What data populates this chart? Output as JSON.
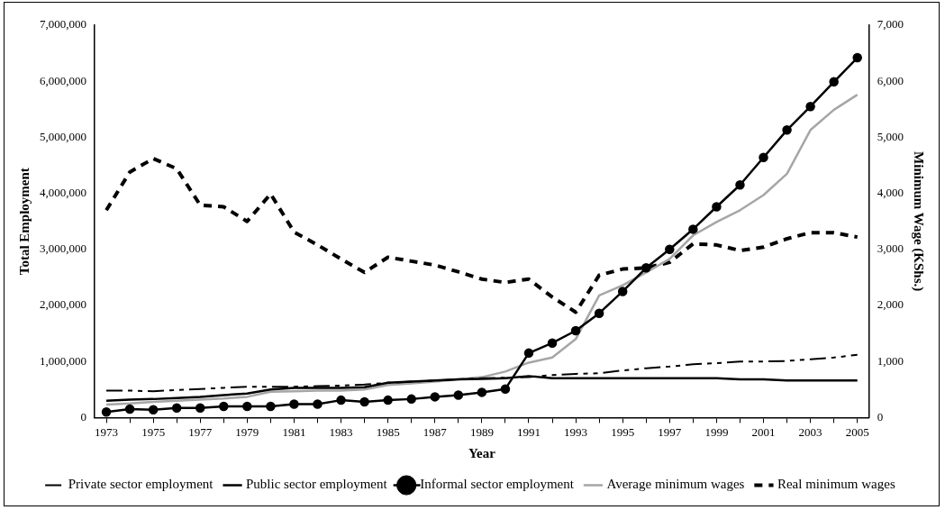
{
  "chart_data": {
    "type": "line",
    "xlabel": "Year",
    "ylabel": "Total Employment",
    "y2label": "Minimum Wage (KShs.)",
    "categories": [
      "1973",
      null,
      "1975",
      null,
      "1977",
      null,
      "1979",
      null,
      "1981",
      null,
      "1983",
      null,
      "1985",
      null,
      "1987",
      null,
      "1989",
      null,
      "1991",
      null,
      "1993",
      null,
      "1995",
      null,
      "1997",
      null,
      "1999",
      null,
      "2001",
      null,
      "2003",
      null,
      "2005"
    ],
    "series": [
      {
        "name": "Private sector employment",
        "color": "#000000",
        "line_style": "dashed",
        "marker": "none",
        "values": [
          480000,
          480000,
          470000,
          490000,
          510000,
          530000,
          550000,
          550000,
          550000,
          560000,
          570000,
          590000,
          620000,
          640000,
          660000,
          680000,
          700000,
          710000,
          720000,
          760000,
          780000,
          790000,
          840000,
          880000,
          910000,
          950000,
          970000,
          1000000,
          1000000,
          1010000,
          1040000,
          1070000,
          1120000
        ]
      },
      {
        "name": "Public sector employment",
        "color": "#000000",
        "line_style": "solid",
        "marker": "none",
        "values": [
          300000,
          320000,
          330000,
          350000,
          370000,
          400000,
          430000,
          500000,
          530000,
          530000,
          530000,
          540000,
          620000,
          640000,
          660000,
          680000,
          690000,
          700000,
          740000,
          700000,
          700000,
          700000,
          700000,
          700000,
          700000,
          700000,
          700000,
          680000,
          680000,
          660000,
          660000,
          660000,
          660000
        ]
      },
      {
        "name": "Informal sector employment",
        "color": "#000000",
        "line_style": "solid",
        "marker": "circle",
        "values": [
          100000,
          150000,
          140000,
          170000,
          170000,
          200000,
          200000,
          200000,
          240000,
          240000,
          310000,
          280000,
          310000,
          330000,
          370000,
          400000,
          450000,
          510000,
          1150000,
          1330000,
          1550000,
          1860000,
          2250000,
          2670000,
          3000000,
          3360000,
          3760000,
          4150000,
          4640000,
          5130000,
          5550000,
          5990000,
          6420000
        ]
      },
      {
        "name": "Average minimum wages",
        "color": "#a6a6a6",
        "line_style": "solid",
        "marker": "none",
        "axis": "y2",
        "values": [
          230,
          250,
          280,
          300,
          320,
          340,
          370,
          460,
          470,
          480,
          480,
          500,
          580,
          610,
          640,
          680,
          720,
          820,
          980,
          1070,
          1400,
          2180,
          2360,
          2590,
          2830,
          3250,
          3490,
          3700,
          3970,
          4350,
          5130,
          5490,
          5760
        ]
      },
      {
        "name": "Real minimum wages",
        "color": "#000000",
        "line_style": "dotted",
        "marker": "none",
        "axis": "y2",
        "values": [
          3700,
          4380,
          4620,
          4440,
          3790,
          3760,
          3500,
          3990,
          3310,
          3080,
          2830,
          2590,
          2860,
          2790,
          2720,
          2600,
          2470,
          2410,
          2470,
          2150,
          1880,
          2540,
          2650,
          2670,
          2770,
          3100,
          3080,
          2980,
          3040,
          3190,
          3300,
          3300,
          3220
        ]
      }
    ],
    "ylim": [
      0,
      7000000
    ],
    "yticks": [
      {
        "value": 0,
        "label": "0"
      },
      {
        "value": 1000000,
        "label": "1,000,000"
      },
      {
        "value": 2000000,
        "label": "2,000,000"
      },
      {
        "value": 3000000,
        "label": "3,000,000"
      },
      {
        "value": 4000000,
        "label": "4,000,000"
      },
      {
        "value": 5000000,
        "label": "5,000,000"
      },
      {
        "value": 6000000,
        "label": "6,000,000"
      },
      {
        "value": 7000000,
        "label": "7,000,000"
      }
    ],
    "y2lim": [
      0,
      7000
    ],
    "y2ticks": [
      {
        "value": 0,
        "label": "0"
      },
      {
        "value": 1000,
        "label": "1,000"
      },
      {
        "value": 2000,
        "label": "2,000"
      },
      {
        "value": 3000,
        "label": "3,000"
      },
      {
        "value": 4000,
        "label": "4,000"
      },
      {
        "value": 5000,
        "label": "5,000"
      },
      {
        "value": 6000,
        "label": "6,000"
      },
      {
        "value": 7000,
        "label": "7,000"
      }
    ],
    "grid": false,
    "legend": "bottom"
  }
}
